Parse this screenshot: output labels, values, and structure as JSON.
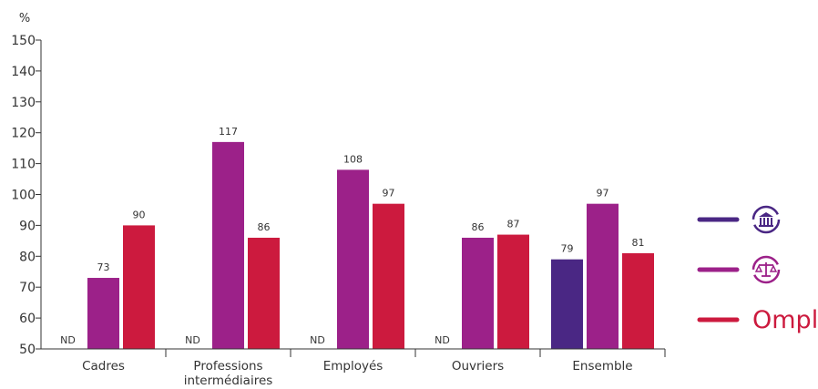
{
  "chart_data": {
    "type": "bar",
    "ylabel": "%",
    "ylim": [
      50,
      150
    ],
    "yticks": [
      50,
      60,
      70,
      80,
      90,
      100,
      110,
      120,
      130,
      140,
      150
    ],
    "categories": [
      "Cadres",
      "Professions intermédiaires",
      "Employés",
      "Ouvriers",
      "Ensemble"
    ],
    "series": [
      {
        "color": "#4a2784",
        "values": [
          null,
          null,
          null,
          null,
          79
        ],
        "labels": [
          "ND",
          "ND",
          "ND",
          "ND",
          "79"
        ]
      },
      {
        "color": "#9c2189",
        "values": [
          73,
          117,
          108,
          86,
          97
        ],
        "labels": [
          "73",
          "117",
          "108",
          "86",
          "97"
        ]
      },
      {
        "color": "#cc1a3e",
        "values": [
          90,
          86,
          97,
          87,
          81
        ],
        "labels": [
          "90",
          "86",
          "97",
          "87",
          "81"
        ]
      }
    ],
    "grid": false,
    "legend": {
      "position": "right",
      "entries": [
        {
          "color": "#4a2784",
          "icon": "bank-building-icon"
        },
        {
          "color": "#9c2189",
          "icon": "scales-of-justice-icon"
        },
        {
          "color": "#cc1a3e",
          "logo_text": "Ompl"
        }
      ]
    }
  }
}
